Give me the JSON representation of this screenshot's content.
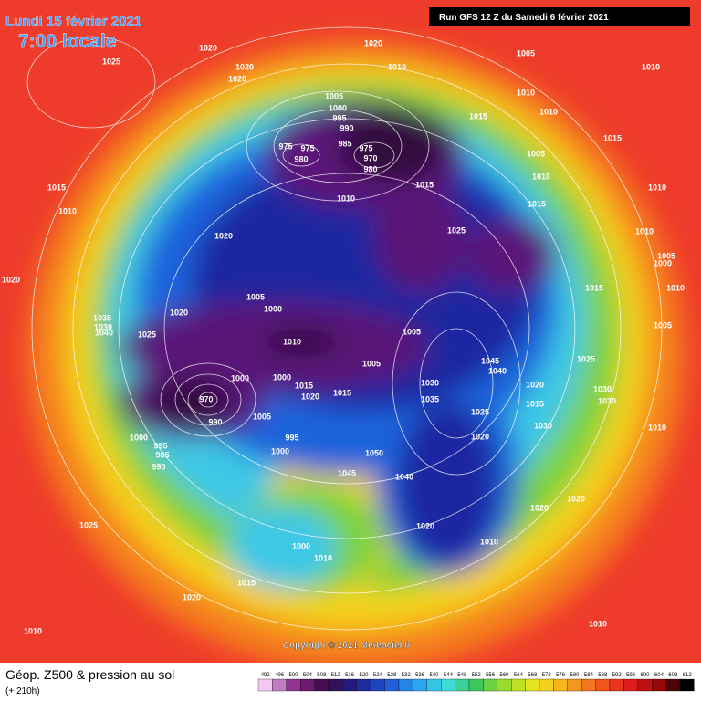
{
  "header": {
    "date": "Lundi 15 février 2021",
    "time": "7:00 locale",
    "run": "Run GFS 12 Z du Samedi 6 février 2021"
  },
  "map": {
    "copyright": "Copyright © 2021 Meteociel.fr",
    "pressure_labels": [
      "1020",
      "1025",
      "1020",
      "1020",
      "1020",
      "1010",
      "1005",
      "1010",
      "1005",
      "1000",
      "995",
      "990",
      "985",
      "975",
      "975",
      "980",
      "975",
      "970",
      "980",
      "1010",
      "1010",
      "1015",
      "1015",
      "1005",
      "1010",
      "1015",
      "1010",
      "1020",
      "1010",
      "1015",
      "1025",
      "1015",
      "1010",
      "1010",
      "1005",
      "1000",
      "1020",
      "1015",
      "1010",
      "1005",
      "1000",
      "1020",
      "1035",
      "1030",
      "1040",
      "1025",
      "1010",
      "1005",
      "1005",
      "1045",
      "1040",
      "1025",
      "1000",
      "1000",
      "1015",
      "1020",
      "1005",
      "1015",
      "1030",
      "1035",
      "1020",
      "1015",
      "1030",
      "1030",
      "1025",
      "1030",
      "1020",
      "970",
      "990",
      "1005",
      "995",
      "1000",
      "1000",
      "995",
      "985",
      "990",
      "1050",
      "1045",
      "1040",
      "1020",
      "1020",
      "1020",
      "1010",
      "1025",
      "1000",
      "1010",
      "1015",
      "1020",
      "1010",
      "1010",
      "1010"
    ]
  },
  "footer": {
    "title": "Géop. Z500 & pression au sol",
    "lead": "(+ 210h)"
  },
  "legend": {
    "levels": [
      492,
      496,
      500,
      504,
      508,
      512,
      516,
      520,
      524,
      528,
      532,
      536,
      540,
      544,
      548,
      552,
      556,
      560,
      564,
      568,
      572,
      576,
      580,
      584,
      588,
      592,
      596,
      600,
      604,
      608,
      612
    ]
  }
}
